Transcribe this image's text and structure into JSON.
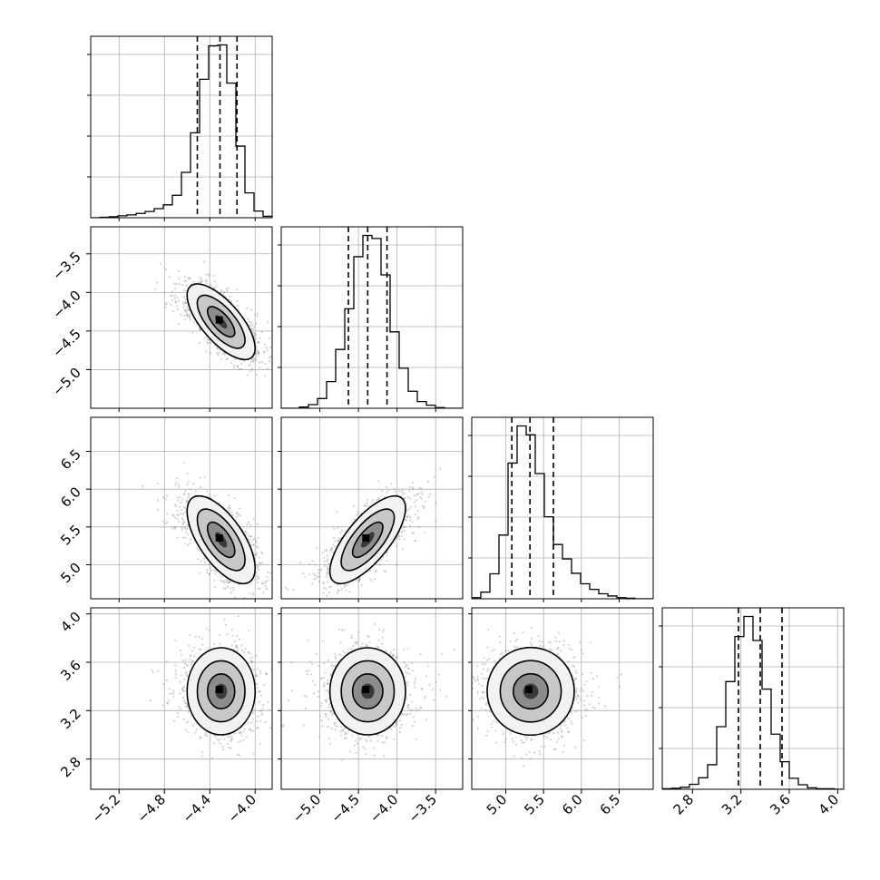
{
  "chart_data": {
    "type": "corner",
    "grid": true,
    "params": [
      {
        "range": [
          -5.45,
          -3.85
        ],
        "ticks": [
          -5.2,
          -4.8,
          -4.4,
          -4.0
        ],
        "tick_labels": [
          "−5.2",
          "−4.8",
          "−4.4",
          "−4.0"
        ],
        "quantiles": [
          -4.51,
          -4.31,
          -4.16
        ]
      },
      {
        "range": [
          -5.5,
          -3.15
        ],
        "ticks": [
          -5.0,
          -4.5,
          -4.0,
          -3.5
        ],
        "tick_labels": [
          "−5.0",
          "−4.5",
          "−4.0",
          "−3.5"
        ],
        "quantiles": [
          -4.63,
          -4.38,
          -4.13
        ]
      },
      {
        "range": [
          4.55,
          6.95
        ],
        "ticks": [
          5.0,
          5.5,
          6.0,
          6.5
        ],
        "tick_labels": [
          "5.0",
          "5.5",
          "6.0",
          "6.5"
        ],
        "quantiles": [
          5.08,
          5.32,
          5.63
        ]
      },
      {
        "range": [
          2.55,
          4.05
        ],
        "ticks": [
          2.8,
          3.2,
          3.6,
          4.0
        ],
        "tick_labels": [
          "2.8",
          "3.2",
          "3.6",
          "4.0"
        ],
        "quantiles": [
          3.18,
          3.36,
          3.54
        ]
      }
    ],
    "histograms": [
      {
        "edges_from": -5.45,
        "bin_width": 0.08,
        "counts": [
          0,
          1,
          2,
          4,
          6,
          9,
          13,
          19,
          27,
          47,
          95,
          178,
          290,
          360,
          362,
          282,
          150,
          52,
          14,
          3
        ]
      },
      {
        "edges_from": -5.5,
        "bin_width": 0.1175,
        "counts": [
          0,
          0,
          2,
          6,
          16,
          44,
          97,
          164,
          250,
          285,
          280,
          220,
          126,
          66,
          28,
          11,
          5,
          1,
          0,
          0
        ]
      },
      {
        "edges_from": 4.55,
        "bin_width": 0.12,
        "counts": [
          2,
          12,
          45,
          115,
          245,
          312,
          296,
          226,
          148,
          98,
          72,
          46,
          27,
          17,
          9,
          5,
          2,
          1,
          0,
          0
        ]
      },
      {
        "edges_from": 2.55,
        "bin_width": 0.075,
        "counts": [
          1,
          2,
          4,
          10,
          23,
          49,
          125,
          215,
          305,
          345,
          297,
          200,
          110,
          55,
          22,
          9,
          3,
          1,
          1,
          0
        ]
      }
    ],
    "correlations": [
      [
        1.0,
        -0.7,
        -0.65,
        0.0
      ],
      [
        -0.7,
        1.0,
        0.72,
        0.0
      ],
      [
        -0.65,
        0.72,
        1.0,
        0.0
      ],
      [
        0.0,
        0.0,
        0.0,
        1.0
      ]
    ],
    "sigma": [
      0.15,
      0.245,
      0.29,
      0.18
    ],
    "mean": [
      -4.3,
      -4.38,
      5.33,
      3.36
    ],
    "scatter_color": "#808080",
    "line_color": "#000000"
  }
}
